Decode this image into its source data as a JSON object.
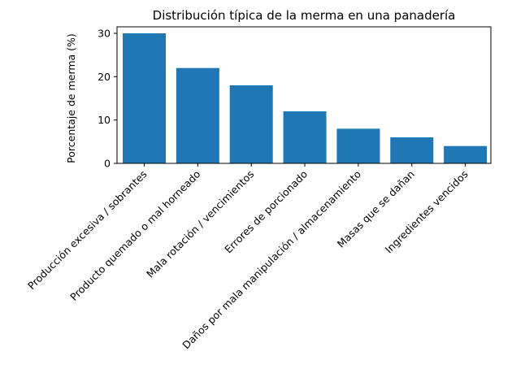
{
  "chart_data": {
    "type": "bar",
    "title": "Distribución típica de la merma en una panadería",
    "xlabel": "",
    "ylabel": "Porcentaje de merma (%)",
    "categories": [
      "Producción excesiva / sobrantes",
      "Producto quemado o mal horneado",
      "Mala rotación / vencimientos",
      "Errores de porcionado",
      "Daños por mala manipulación / almacenamiento",
      "Masas que se dañan",
      "Ingredientes vencidos"
    ],
    "values": [
      30,
      22,
      18,
      12,
      8,
      6,
      4
    ],
    "ylim": [
      0,
      31.5
    ],
    "yticks": [
      0,
      10,
      20,
      30
    ],
    "bar_color": "#1f77b4",
    "grid": false,
    "legend": "none"
  }
}
